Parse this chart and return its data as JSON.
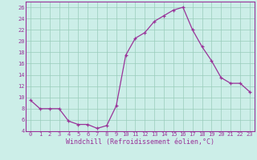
{
  "x": [
    0,
    1,
    2,
    3,
    4,
    5,
    6,
    7,
    8,
    9,
    10,
    11,
    12,
    13,
    14,
    15,
    16,
    17,
    18,
    19,
    20,
    21,
    22,
    23
  ],
  "y": [
    9.5,
    8.0,
    8.0,
    8.0,
    5.8,
    5.2,
    5.2,
    4.5,
    5.0,
    8.5,
    17.5,
    20.5,
    21.5,
    23.5,
    24.5,
    25.5,
    26.0,
    22.0,
    19.0,
    16.5,
    13.5,
    12.5,
    12.5,
    11.0
  ],
  "line_color": "#993399",
  "marker": "+",
  "markersize": 3.5,
  "linewidth": 0.9,
  "markeredgewidth": 0.9,
  "xlabel": "Windchill (Refroidissement éolien,°C)",
  "xlabel_fontsize": 6.0,
  "xlim": [
    -0.5,
    23.5
  ],
  "ylim": [
    4,
    27
  ],
  "yticks": [
    4,
    6,
    8,
    10,
    12,
    14,
    16,
    18,
    20,
    22,
    24,
    26
  ],
  "xticks": [
    0,
    1,
    2,
    3,
    4,
    5,
    6,
    7,
    8,
    9,
    10,
    11,
    12,
    13,
    14,
    15,
    16,
    17,
    18,
    19,
    20,
    21,
    22,
    23
  ],
  "tick_fontsize": 5.0,
  "grid_color": "#99ccbb",
  "background_color": "#cceee8",
  "figure_bg": "#cceee8",
  "spine_color": "#993399"
}
